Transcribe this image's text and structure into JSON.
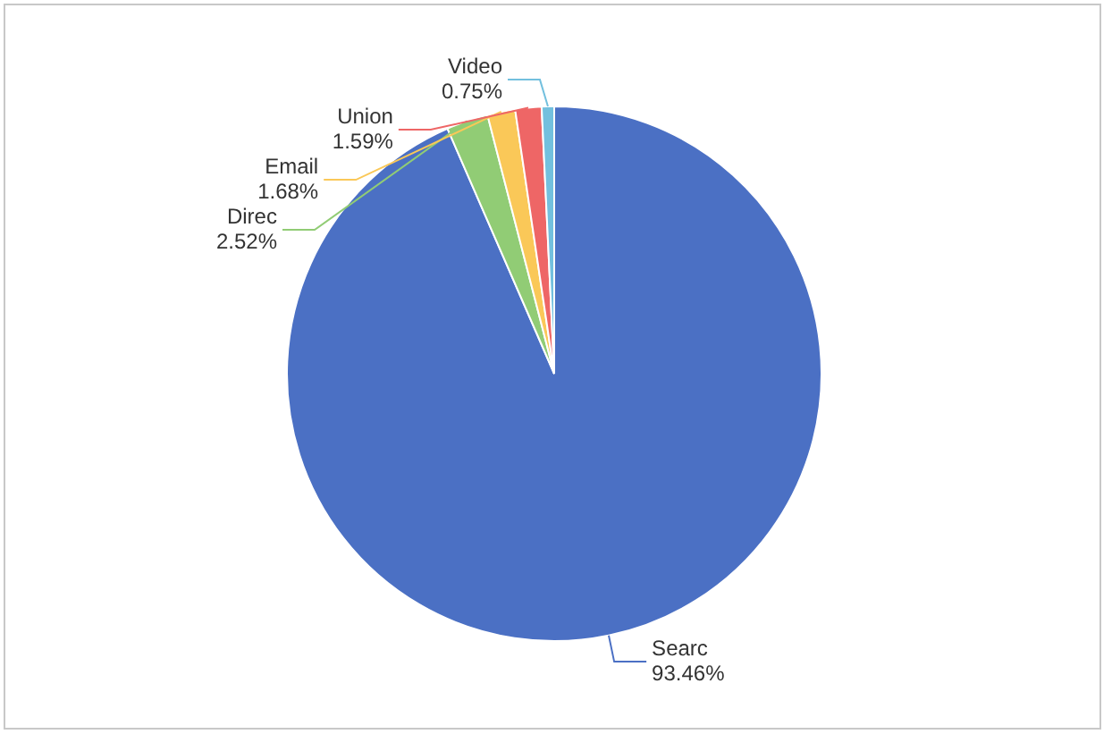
{
  "chart_data": {
    "type": "pie",
    "categories": [
      "Searc",
      "Direc",
      "Email",
      "Union",
      "Video"
    ],
    "values": [
      93.46,
      2.52,
      1.68,
      1.59,
      0.75
    ],
    "colors": [
      "#4b70c4",
      "#91cc75",
      "#fac858",
      "#ee6666",
      "#73c0de"
    ],
    "value_labels": [
      "93.46%",
      "2.52%",
      "1.68%",
      "1.59%",
      "0.75%"
    ]
  }
}
